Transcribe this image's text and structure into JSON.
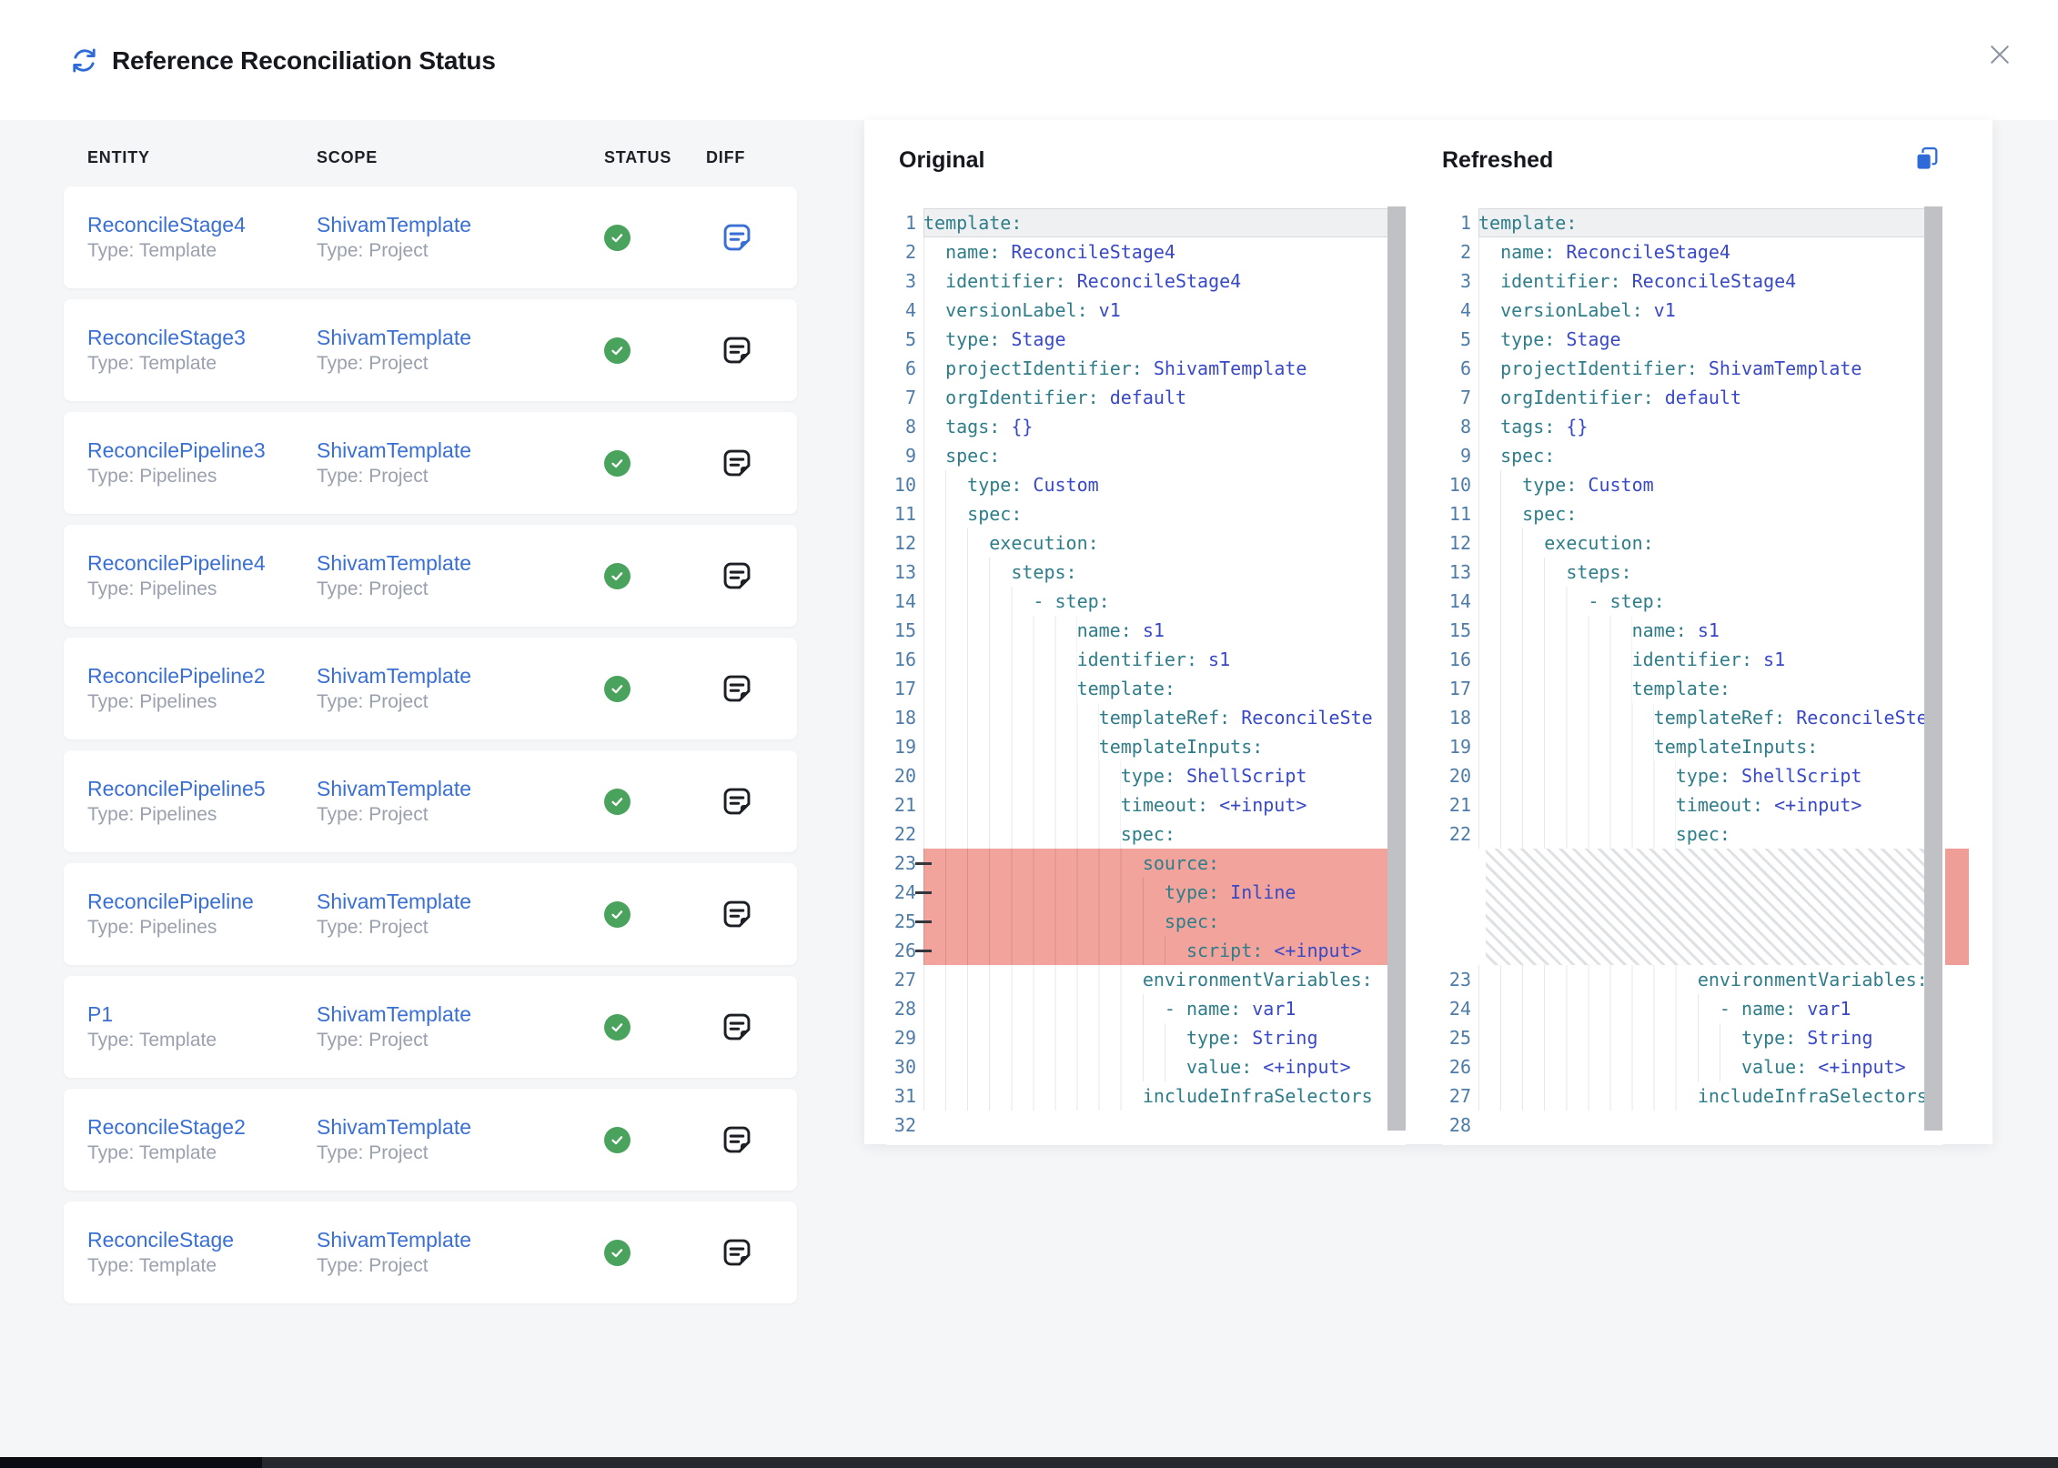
{
  "header": {
    "title": "Reference Reconciliation Status"
  },
  "icons": {
    "title_icon": "refresh",
    "close_icon": "x",
    "status_icon": "check-circle",
    "diff_icon": "note-document",
    "copy_icon": "copy"
  },
  "colors": {
    "link_blue": "#3a6fd4",
    "status_green": "#4aa35c",
    "removed_red": "#f2a49c",
    "key_teal": "#2e7d89",
    "value_blue": "#3949c6"
  },
  "table": {
    "columns": [
      "ENTITY",
      "SCOPE",
      "STATUS",
      "DIFF"
    ],
    "rows": [
      {
        "entity": "ReconcileStage4",
        "entity_type": "Type: Template",
        "scope": "ShivamTemplate",
        "scope_type": "Type: Project",
        "status": "success",
        "diff_active": true
      },
      {
        "entity": "ReconcileStage3",
        "entity_type": "Type: Template",
        "scope": "ShivamTemplate",
        "scope_type": "Type: Project",
        "status": "success",
        "diff_active": false
      },
      {
        "entity": "ReconcilePipeline3",
        "entity_type": "Type: Pipelines",
        "scope": "ShivamTemplate",
        "scope_type": "Type: Project",
        "status": "success",
        "diff_active": false
      },
      {
        "entity": "ReconcilePipeline4",
        "entity_type": "Type: Pipelines",
        "scope": "ShivamTemplate",
        "scope_type": "Type: Project",
        "status": "success",
        "diff_active": false
      },
      {
        "entity": "ReconcilePipeline2",
        "entity_type": "Type: Pipelines",
        "scope": "ShivamTemplate",
        "scope_type": "Type: Project",
        "status": "success",
        "diff_active": false
      },
      {
        "entity": "ReconcilePipeline5",
        "entity_type": "Type: Pipelines",
        "scope": "ShivamTemplate",
        "scope_type": "Type: Project",
        "status": "success",
        "diff_active": false
      },
      {
        "entity": "ReconcilePipeline",
        "entity_type": "Type: Pipelines",
        "scope": "ShivamTemplate",
        "scope_type": "Type: Project",
        "status": "success",
        "diff_active": false
      },
      {
        "entity": "P1",
        "entity_type": "Type: Template",
        "scope": "ShivamTemplate",
        "scope_type": "Type: Project",
        "status": "success",
        "diff_active": false
      },
      {
        "entity": "ReconcileStage2",
        "entity_type": "Type: Template",
        "scope": "ShivamTemplate",
        "scope_type": "Type: Project",
        "status": "success",
        "diff_active": false
      },
      {
        "entity": "ReconcileStage",
        "entity_type": "Type: Template",
        "scope": "ShivamTemplate",
        "scope_type": "Type: Project",
        "status": "success",
        "diff_active": false
      }
    ]
  },
  "diff": {
    "original_label": "Original",
    "refreshed_label": "Refreshed",
    "original_lines": [
      {
        "n": 1,
        "indent": 0,
        "key": "template",
        "active": true
      },
      {
        "n": 2,
        "indent": 2,
        "key": "name",
        "value": "ReconcileStage4"
      },
      {
        "n": 3,
        "indent": 2,
        "key": "identifier",
        "value": "ReconcileStage4"
      },
      {
        "n": 4,
        "indent": 2,
        "key": "versionLabel",
        "value": "v1"
      },
      {
        "n": 5,
        "indent": 2,
        "key": "type",
        "value": "Stage"
      },
      {
        "n": 6,
        "indent": 2,
        "key": "projectIdentifier",
        "value": "ShivamTemplate"
      },
      {
        "n": 7,
        "indent": 2,
        "key": "orgIdentifier",
        "value": "default"
      },
      {
        "n": 8,
        "indent": 2,
        "key": "tags",
        "value": "{}"
      },
      {
        "n": 9,
        "indent": 2,
        "key": "spec"
      },
      {
        "n": 10,
        "indent": 4,
        "key": "type",
        "value": "Custom"
      },
      {
        "n": 11,
        "indent": 4,
        "key": "spec"
      },
      {
        "n": 12,
        "indent": 6,
        "key": "execution"
      },
      {
        "n": 13,
        "indent": 8,
        "key": "steps"
      },
      {
        "n": 14,
        "indent": 10,
        "dash": true,
        "key": "step"
      },
      {
        "n": 15,
        "indent": 14,
        "key": "name",
        "value": "s1"
      },
      {
        "n": 16,
        "indent": 14,
        "key": "identifier",
        "value": "s1"
      },
      {
        "n": 17,
        "indent": 14,
        "key": "template"
      },
      {
        "n": 18,
        "indent": 16,
        "key": "templateRef",
        "value": "ReconcileSte"
      },
      {
        "n": 19,
        "indent": 16,
        "key": "templateInputs"
      },
      {
        "n": 20,
        "indent": 18,
        "key": "type",
        "value": "ShellScript"
      },
      {
        "n": 21,
        "indent": 18,
        "key": "timeout",
        "value": "<+input>"
      },
      {
        "n": 22,
        "indent": 18,
        "key": "spec"
      },
      {
        "n": 23,
        "indent": 20,
        "key": "source",
        "removed": true
      },
      {
        "n": 24,
        "indent": 22,
        "key": "type",
        "value": "Inline",
        "removed": true
      },
      {
        "n": 25,
        "indent": 22,
        "key": "spec",
        "removed": true
      },
      {
        "n": 26,
        "indent": 24,
        "key": "script",
        "value": "<+input>",
        "removed": true
      },
      {
        "n": 27,
        "indent": 20,
        "key": "environmentVariables"
      },
      {
        "n": 28,
        "indent": 22,
        "dash": true,
        "key": "name",
        "value": "var1"
      },
      {
        "n": 29,
        "indent": 24,
        "key": "type",
        "value": "String"
      },
      {
        "n": 30,
        "indent": 24,
        "key": "value",
        "value": "<+input>"
      },
      {
        "n": 31,
        "indent": 20,
        "key": "includeInfraSelectors",
        "nocolon": true
      },
      {
        "n": 32,
        "empty": true
      }
    ],
    "refreshed_lines": [
      {
        "n": 1,
        "indent": 0,
        "key": "template",
        "active": true
      },
      {
        "n": 2,
        "indent": 2,
        "key": "name",
        "value": "ReconcileStage4"
      },
      {
        "n": 3,
        "indent": 2,
        "key": "identifier",
        "value": "ReconcileStage4"
      },
      {
        "n": 4,
        "indent": 2,
        "key": "versionLabel",
        "value": "v1"
      },
      {
        "n": 5,
        "indent": 2,
        "key": "type",
        "value": "Stage"
      },
      {
        "n": 6,
        "indent": 2,
        "key": "projectIdentifier",
        "value": "ShivamTemplate"
      },
      {
        "n": 7,
        "indent": 2,
        "key": "orgIdentifier",
        "value": "default"
      },
      {
        "n": 8,
        "indent": 2,
        "key": "tags",
        "value": "{}"
      },
      {
        "n": 9,
        "indent": 2,
        "key": "spec"
      },
      {
        "n": 10,
        "indent": 4,
        "key": "type",
        "value": "Custom"
      },
      {
        "n": 11,
        "indent": 4,
        "key": "spec"
      },
      {
        "n": 12,
        "indent": 6,
        "key": "execution"
      },
      {
        "n": 13,
        "indent": 8,
        "key": "steps"
      },
      {
        "n": 14,
        "indent": 10,
        "dash": true,
        "key": "step"
      },
      {
        "n": 15,
        "indent": 14,
        "key": "name",
        "value": "s1"
      },
      {
        "n": 16,
        "indent": 14,
        "key": "identifier",
        "value": "s1"
      },
      {
        "n": 17,
        "indent": 14,
        "key": "template"
      },
      {
        "n": 18,
        "indent": 16,
        "key": "templateRef",
        "value": "ReconcileSte"
      },
      {
        "n": 19,
        "indent": 16,
        "key": "templateInputs"
      },
      {
        "n": 20,
        "indent": 18,
        "key": "type",
        "value": "ShellScript"
      },
      {
        "n": 21,
        "indent": 18,
        "key": "timeout",
        "value": "<+input>"
      },
      {
        "n": 22,
        "indent": 18,
        "key": "spec"
      },
      {
        "hatch": true,
        "rows": 4
      },
      {
        "n": 23,
        "indent": 20,
        "key": "environmentVariables"
      },
      {
        "n": 24,
        "indent": 22,
        "dash": true,
        "key": "name",
        "value": "var1"
      },
      {
        "n": 25,
        "indent": 24,
        "key": "type",
        "value": "String"
      },
      {
        "n": 26,
        "indent": 24,
        "key": "value",
        "value": "<+input>"
      },
      {
        "n": 27,
        "indent": 20,
        "key": "includeInfraSelectors",
        "nocolon": true
      },
      {
        "n": 28,
        "empty": true
      }
    ]
  }
}
